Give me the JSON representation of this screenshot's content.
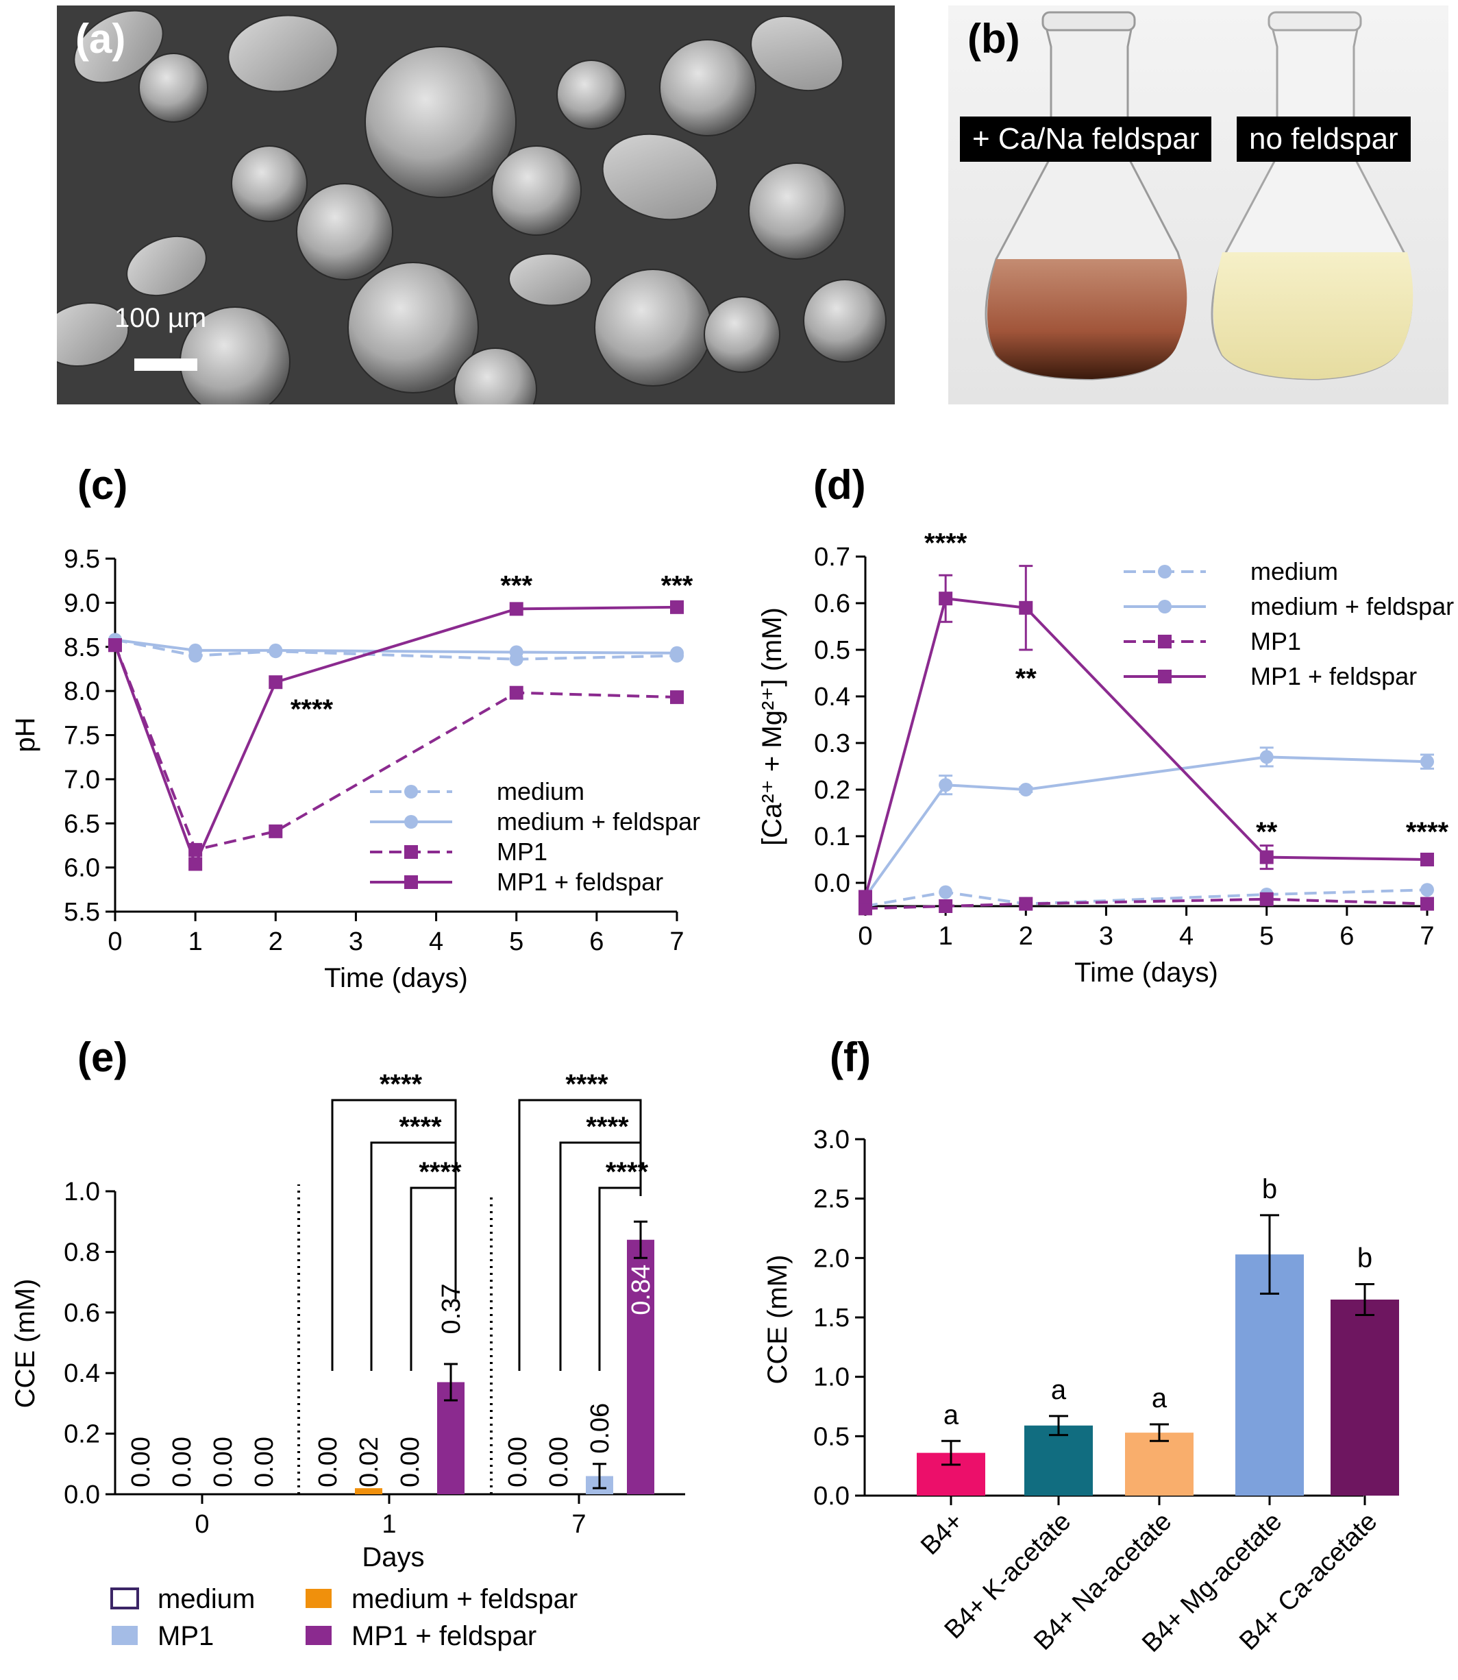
{
  "panels": {
    "a": {
      "letter": "(a)",
      "scale_label": "100 µm"
    },
    "b": {
      "letter": "(b)",
      "flask_left_label": "+ Ca/Na feldspar",
      "flask_right_label": "no feldspar"
    },
    "c": {
      "letter": "(c)"
    },
    "d": {
      "letter": "(d)"
    },
    "e": {
      "letter": "(e)"
    },
    "f": {
      "letter": "(f)"
    }
  },
  "colors": {
    "light_blue": "#a4bce6",
    "purple": "#8b2a8f",
    "orange": "#f0900c",
    "dark_outline": "#3b2566",
    "pink": "#ec0f6a",
    "teal": "#116d80",
    "peach": "#f9ae6c",
    "blue_bar": "#7da1dc",
    "dark_purple": "#6e1660"
  },
  "chart_data": [
    {
      "panel": "c",
      "type": "line",
      "xlabel": "Time (days)",
      "ylabel": "pH",
      "xlim": [
        0,
        7
      ],
      "ylim": [
        5.5,
        9.5
      ],
      "xticks": [
        "0",
        "1",
        "2",
        "3",
        "4",
        "5",
        "6",
        "7"
      ],
      "yticks": [
        "5.5",
        "6.0",
        "6.5",
        "7.0",
        "7.5",
        "8.0",
        "8.5",
        "9.0",
        "9.5"
      ],
      "legend_position": "bottom-right",
      "series": [
        {
          "name": "medium",
          "style": "dashed",
          "marker": "circle",
          "color": "#a4bce6",
          "x": [
            0,
            1,
            2,
            5,
            7
          ],
          "y": [
            8.58,
            8.4,
            8.45,
            8.36,
            8.4
          ]
        },
        {
          "name": "medium + feldspar",
          "style": "solid",
          "marker": "circle",
          "color": "#a4bce6",
          "x": [
            0,
            1,
            2,
            5,
            7
          ],
          "y": [
            8.58,
            8.46,
            8.46,
            8.44,
            8.43
          ]
        },
        {
          "name": "MP1",
          "style": "dashed",
          "marker": "square",
          "color": "#8b2a8f",
          "x": [
            0,
            1,
            2,
            5,
            7
          ],
          "y": [
            8.52,
            6.2,
            6.41,
            7.98,
            7.93
          ]
        },
        {
          "name": "MP1 + feldspar",
          "style": "solid",
          "marker": "square",
          "color": "#8b2a8f",
          "x": [
            0,
            1,
            2,
            5,
            7
          ],
          "y": [
            8.52,
            6.04,
            8.1,
            8.93,
            8.95
          ]
        }
      ],
      "annotations": [
        {
          "text": "****",
          "x": 2.45,
          "y": 7.8
        },
        {
          "text": "***",
          "x": 5,
          "y": 9.2
        },
        {
          "text": "***",
          "x": 7,
          "y": 9.2
        }
      ]
    },
    {
      "panel": "d",
      "type": "line",
      "xlabel": "Time (days)",
      "ylabel": "[Ca²⁺ + Mg²⁺] (mM)",
      "xlim": [
        0,
        7
      ],
      "ylim": [
        -0.05,
        0.7
      ],
      "xticks": [
        "0",
        "1",
        "2",
        "3",
        "4",
        "5",
        "6",
        "7"
      ],
      "yticks": [
        "0.0",
        "0.1",
        "0.2",
        "0.3",
        "0.4",
        "0.5",
        "0.6",
        "0.7"
      ],
      "legend_position": "top-right",
      "series": [
        {
          "name": "medium",
          "style": "dashed",
          "marker": "circle",
          "color": "#a4bce6",
          "x": [
            0,
            1,
            2,
            5,
            7
          ],
          "y": [
            -0.05,
            -0.02,
            -0.045,
            -0.025,
            -0.015
          ]
        },
        {
          "name": "medium + feldspar",
          "style": "solid",
          "marker": "circle",
          "color": "#a4bce6",
          "x": [
            0,
            1,
            2,
            5,
            7
          ],
          "y": [
            -0.03,
            0.21,
            0.2,
            0.27,
            0.26
          ],
          "err": [
            0,
            0.02,
            0.005,
            0.02,
            0.015
          ]
        },
        {
          "name": "MP1",
          "style": "dashed",
          "marker": "square",
          "color": "#8b2a8f",
          "x": [
            0,
            1,
            2,
            5,
            7
          ],
          "y": [
            -0.055,
            -0.05,
            -0.045,
            -0.035,
            -0.045
          ]
        },
        {
          "name": "MP1 + feldspar",
          "style": "solid",
          "marker": "square",
          "color": "#8b2a8f",
          "x": [
            0,
            1,
            2,
            5,
            7
          ],
          "y": [
            -0.03,
            0.61,
            0.59,
            0.055,
            0.05
          ],
          "err": [
            0,
            0.05,
            0.09,
            0.025,
            0.01
          ]
        }
      ],
      "annotations": [
        {
          "text": "****",
          "x": 1,
          "y": 0.73
        },
        {
          "text": "**",
          "x": 2,
          "y": 0.44
        },
        {
          "text": "**",
          "x": 5,
          "y": 0.11
        },
        {
          "text": "****",
          "x": 7,
          "y": 0.11
        }
      ]
    },
    {
      "panel": "e",
      "type": "bar",
      "xlabel": "Days",
      "ylabel": "CCE (mM)",
      "ylim": [
        0,
        1.0
      ],
      "yticks": [
        "0.0",
        "0.2",
        "0.4",
        "0.6",
        "0.8",
        "1.0"
      ],
      "categories": [
        "0",
        "1",
        "7"
      ],
      "legend_position": "bottom",
      "series": [
        {
          "name": "medium",
          "color": "#ffffff",
          "values": [
            0.0,
            0.0,
            0.0
          ],
          "labels": [
            "0.00",
            "0.00",
            "0.00"
          ]
        },
        {
          "name": "medium + feldspar",
          "color": "#f0900c",
          "values": [
            0.0,
            0.02,
            0.0
          ],
          "labels": [
            "0.00",
            "0.02",
            "0.00"
          ]
        },
        {
          "name": "MP1",
          "color": "#a4bce6",
          "values": [
            0.0,
            0.0,
            0.06
          ],
          "labels": [
            "0.00",
            "0.00",
            "0.06"
          ],
          "err": [
            0,
            0,
            0.04
          ]
        },
        {
          "name": "MP1 + feldspar",
          "color": "#8b2a8f",
          "values": [
            0.0,
            0.37,
            0.84
          ],
          "labels": [
            "0.00",
            "0.37",
            "0.84"
          ],
          "err": [
            0,
            0.06,
            0.06
          ]
        }
      ],
      "significance": "****"
    },
    {
      "panel": "f",
      "type": "bar",
      "ylabel": "CCE (mM)",
      "ylim": [
        0,
        3.0
      ],
      "yticks": [
        "0.0",
        "0.5",
        "1.0",
        "1.5",
        "2.0",
        "2.5",
        "3.0"
      ],
      "categories": [
        "B4+",
        "B4+ K-acetate",
        "B4+ Na-acetate",
        "B4+ Mg-acetate",
        "B4+ Ca-acetate"
      ],
      "values": [
        0.36,
        0.59,
        0.53,
        2.03,
        1.65
      ],
      "err": [
        0.1,
        0.08,
        0.07,
        0.33,
        0.13
      ],
      "colors": [
        "#ec0f6a",
        "#116d80",
        "#f9ae6c",
        "#7da1dc",
        "#6e1660"
      ],
      "group_letters": [
        "a",
        "a",
        "a",
        "b",
        "b"
      ]
    }
  ]
}
